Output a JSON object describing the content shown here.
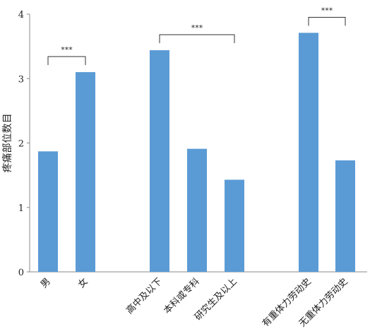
{
  "chart_data": {
    "type": "bar",
    "ylabel": "疼痛部位数目",
    "ylim": [
      0,
      4
    ],
    "yticks": [
      0,
      1,
      2,
      3,
      4
    ],
    "groups": [
      {
        "categories": [
          "男",
          "女"
        ],
        "values": [
          1.87,
          3.1
        ],
        "significance": "***"
      },
      {
        "categories": [
          "高中及以下",
          "本科或专科",
          "研究生及以上"
        ],
        "values": [
          3.44,
          1.91,
          1.43
        ],
        "significance": "***"
      },
      {
        "categories": [
          "有重体力劳动史",
          "无重体力劳动史"
        ],
        "values": [
          3.71,
          1.73
        ],
        "significance": "***"
      }
    ],
    "colors": {
      "bar": "#5b9bd5",
      "axis": "#888888",
      "bracket": "#333333"
    },
    "grid": false
  }
}
